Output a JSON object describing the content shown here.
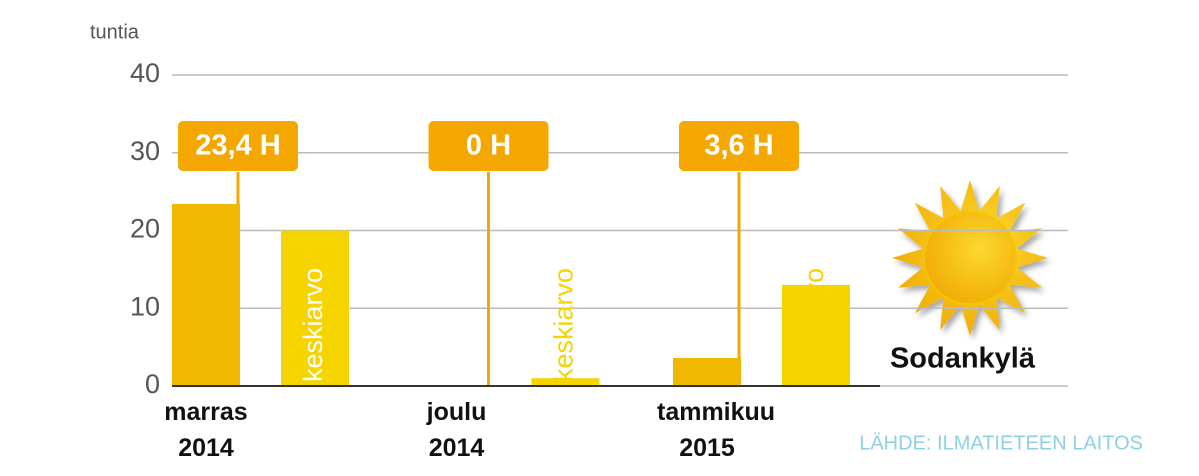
{
  "chart_data": {
    "type": "bar",
    "y_label": "tuntia",
    "categories": [
      "marras 2014",
      "joulu 2014",
      "tammikuu 2015"
    ],
    "series": [
      {
        "color": "#f0b800",
        "values": [
          23.4,
          0,
          3.6
        ],
        "value_labels": [
          "23,4 H",
          "0 H",
          "3,6 H"
        ]
      },
      {
        "name": "keskiarvo",
        "color": "#f5d400",
        "values": [
          20,
          1,
          13
        ]
      }
    ],
    "label_color": "#f4a700",
    "ylim": [
      0,
      40
    ],
    "yticks": [
      0,
      10,
      20,
      30,
      40
    ],
    "grid": true,
    "place": "Sodankylä",
    "source": "LÄHDE: ILMATIETEEN LAITOS"
  }
}
